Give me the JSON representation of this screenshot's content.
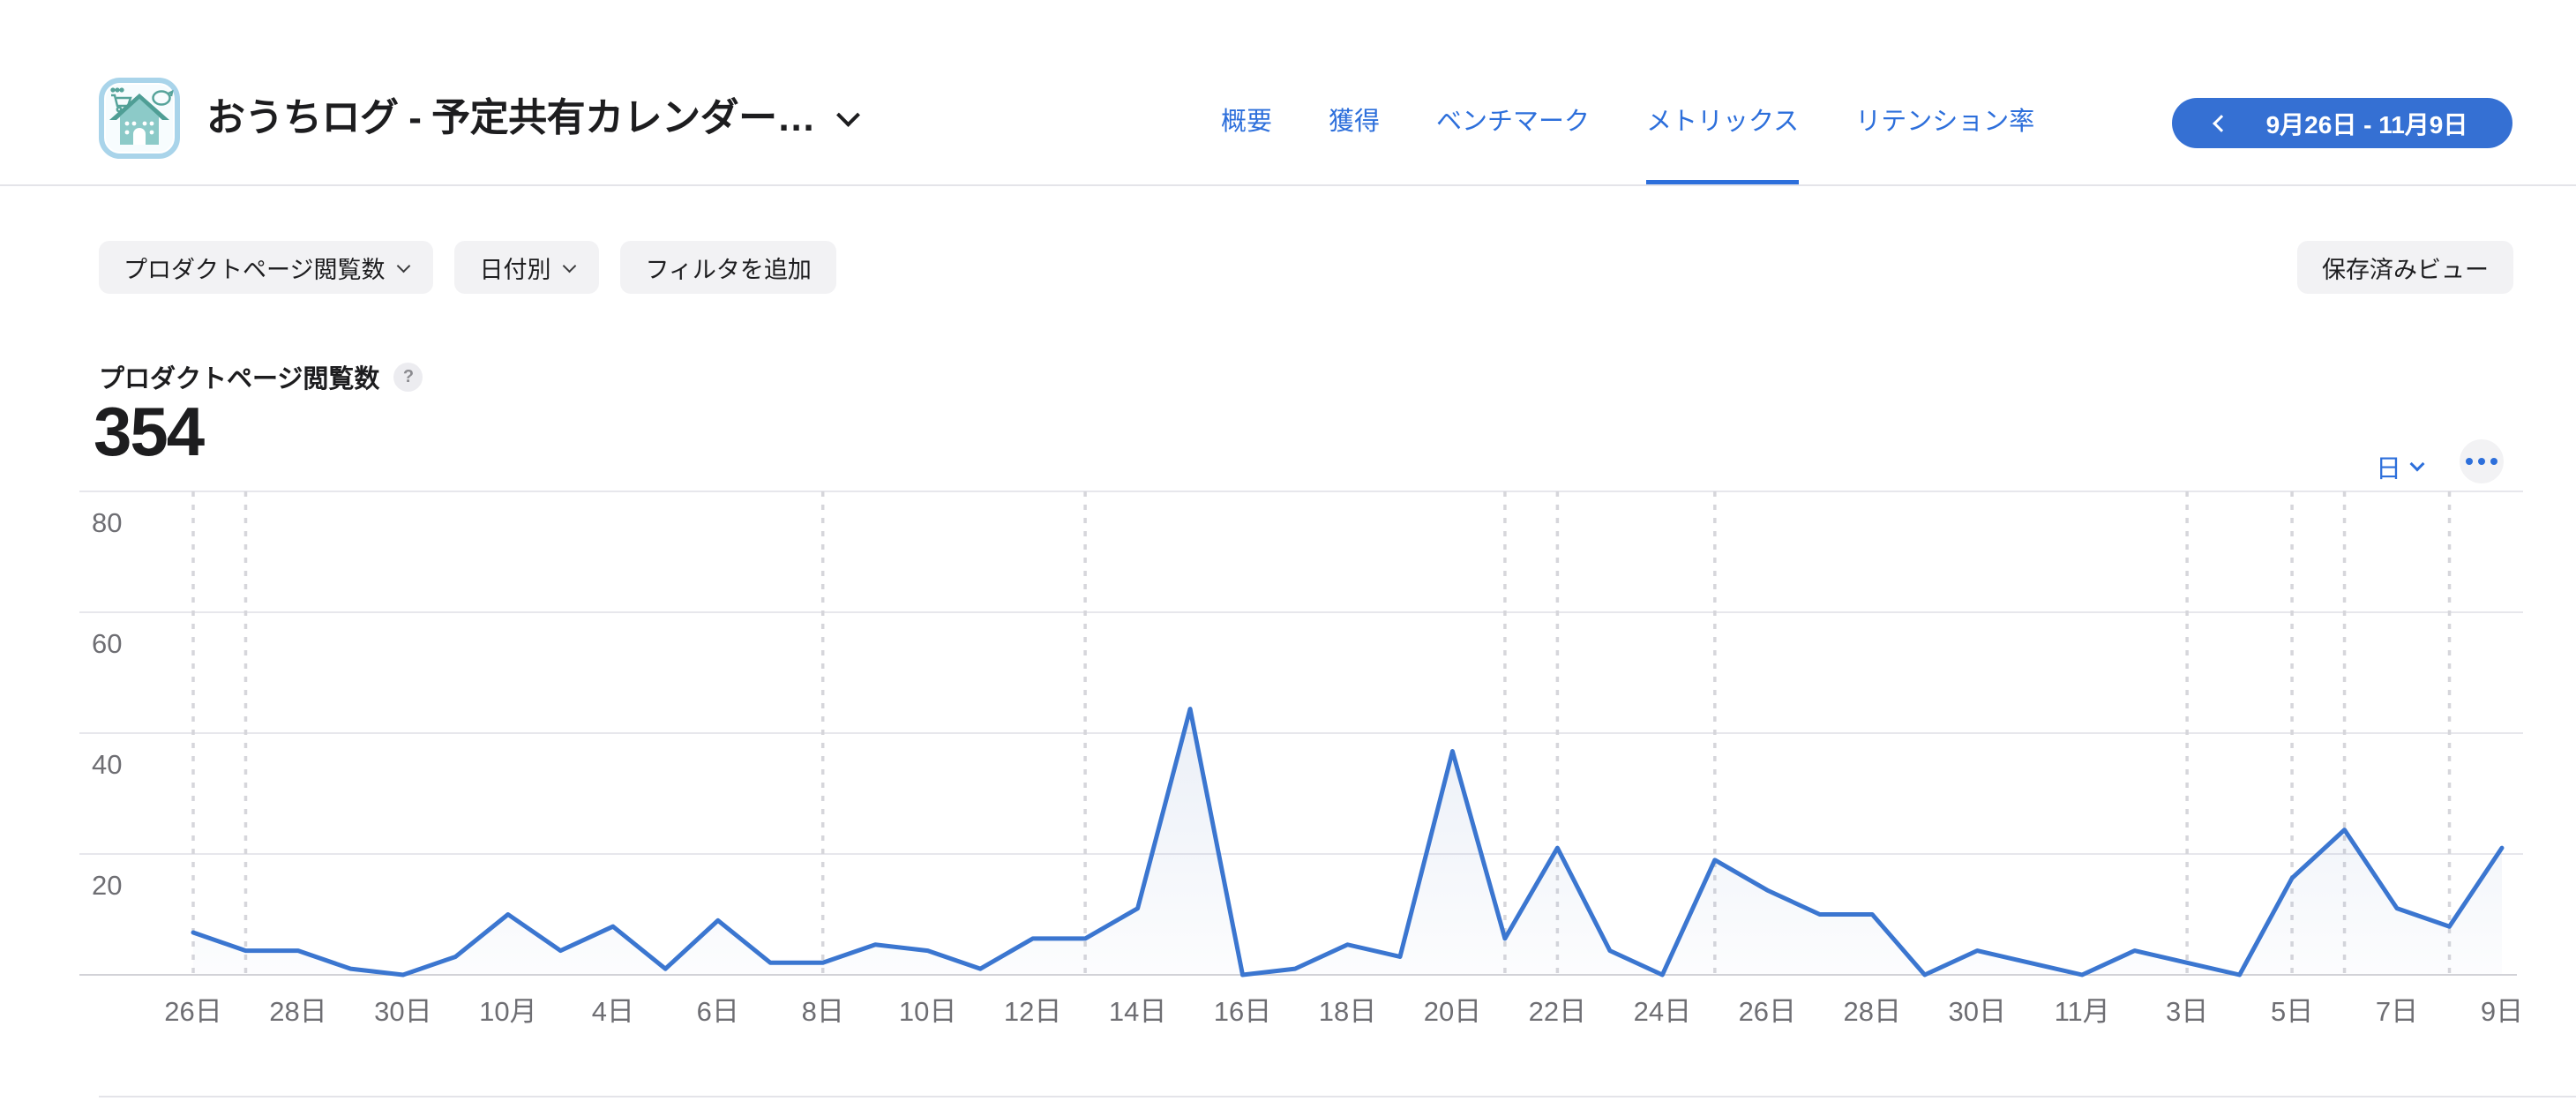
{
  "colors": {
    "accent": "#2d6fdb",
    "pill": "#3570d3",
    "line": "#3b76d0"
  },
  "header": {
    "app_title": "おうちログ - 予定共有カレンダー…",
    "nav": [
      {
        "label": "概要",
        "active": false
      },
      {
        "label": "獲得",
        "active": false
      },
      {
        "label": "ベンチマーク",
        "active": false
      },
      {
        "label": "メトリックス",
        "active": true
      },
      {
        "label": "リテンション率",
        "active": false
      }
    ],
    "date_range": "9月26日 - 11月9日"
  },
  "toolbar": {
    "metric_selector": "プロダクトページ閲覧数",
    "group_by": "日付別",
    "add_filter": "フィルタを追加",
    "saved_views": "保存済みビュー"
  },
  "metric": {
    "title": "プロダクトページ閲覧数",
    "help": "?",
    "total": "354",
    "granularity": "日"
  },
  "chart_data": {
    "type": "line",
    "title": "プロダクトページ閲覧数",
    "total": 354,
    "x": [
      "9/26",
      "9/27",
      "9/28",
      "9/29",
      "9/30",
      "10/1",
      "10/2",
      "10/3",
      "10/4",
      "10/5",
      "10/6",
      "10/7",
      "10/8",
      "10/9",
      "10/10",
      "10/11",
      "10/12",
      "10/13",
      "10/14",
      "10/15",
      "10/16",
      "10/17",
      "10/18",
      "10/19",
      "10/20",
      "10/21",
      "10/22",
      "10/23",
      "10/24",
      "10/25",
      "10/26",
      "10/27",
      "10/28",
      "10/29",
      "10/30",
      "10/31",
      "11/1",
      "11/2",
      "11/3",
      "11/4",
      "11/5",
      "11/6",
      "11/7",
      "11/8",
      "11/9"
    ],
    "values": [
      7,
      4,
      4,
      1,
      0,
      3,
      10,
      4,
      8,
      1,
      9,
      2,
      2,
      5,
      4,
      1,
      6,
      6,
      11,
      44,
      0,
      1,
      5,
      3,
      37,
      6,
      21,
      4,
      0,
      19,
      14,
      10,
      10,
      0,
      4,
      2,
      0,
      4,
      2,
      0,
      16,
      24,
      11,
      8,
      21
    ],
    "tick_labels": [
      "26日",
      "28日",
      "30日",
      "10月",
      "4日",
      "6日",
      "8日",
      "10日",
      "12日",
      "14日",
      "16日",
      "18日",
      "20日",
      "22日",
      "24日",
      "26日",
      "28日",
      "30日",
      "11月",
      "3日",
      "5日",
      "7日",
      "9日"
    ],
    "tick_every": 2,
    "yticks": [
      20,
      40,
      60,
      80
    ],
    "ylim": [
      0,
      80
    ],
    "grid": true,
    "legend_position": "none",
    "dashed_marker_dates": [
      "9/26",
      "9/27",
      "10/8",
      "10/13",
      "10/21",
      "10/22",
      "10/25",
      "11/3",
      "11/5",
      "11/6",
      "11/8"
    ],
    "line_color": "#3b76d0"
  }
}
